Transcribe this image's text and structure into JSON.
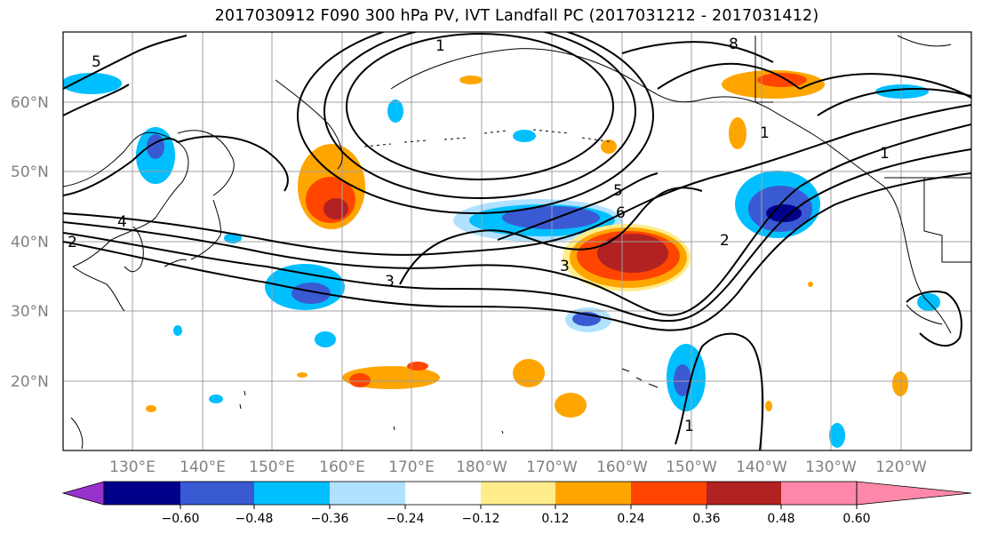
{
  "title": "2017030912 F090 300 hPa PV, IVT Landfall PC (2017031212 - 2017031412)",
  "map": {
    "lat_labels": [
      "60°N",
      "50°N",
      "40°N",
      "30°N",
      "20°N"
    ],
    "lon_labels": [
      "130°E",
      "140°E",
      "150°E",
      "160°E",
      "170°E",
      "180°W",
      "170°W",
      "160°W",
      "150°W",
      "140°W",
      "130°W",
      "120°W"
    ],
    "contour_labels": [
      "1",
      "2",
      "3",
      "4",
      "5",
      "6",
      "8",
      "1",
      "5",
      "3",
      "1",
      "2",
      "1"
    ]
  },
  "colorbar": {
    "tick_labels": [
      "−0.60",
      "−0.48",
      "−0.36",
      "−0.24",
      "−0.12",
      "0.12",
      "0.24",
      "0.36",
      "0.48",
      "0.60"
    ],
    "colors": [
      "#9932CC",
      "#00008B",
      "#3A5AD4",
      "#00BFFF",
      "#B0E2FF",
      "#FFFFFF",
      "#FFEC8B",
      "#FFA500",
      "#FF4500",
      "#B22222",
      "#FF88AA"
    ]
  }
}
